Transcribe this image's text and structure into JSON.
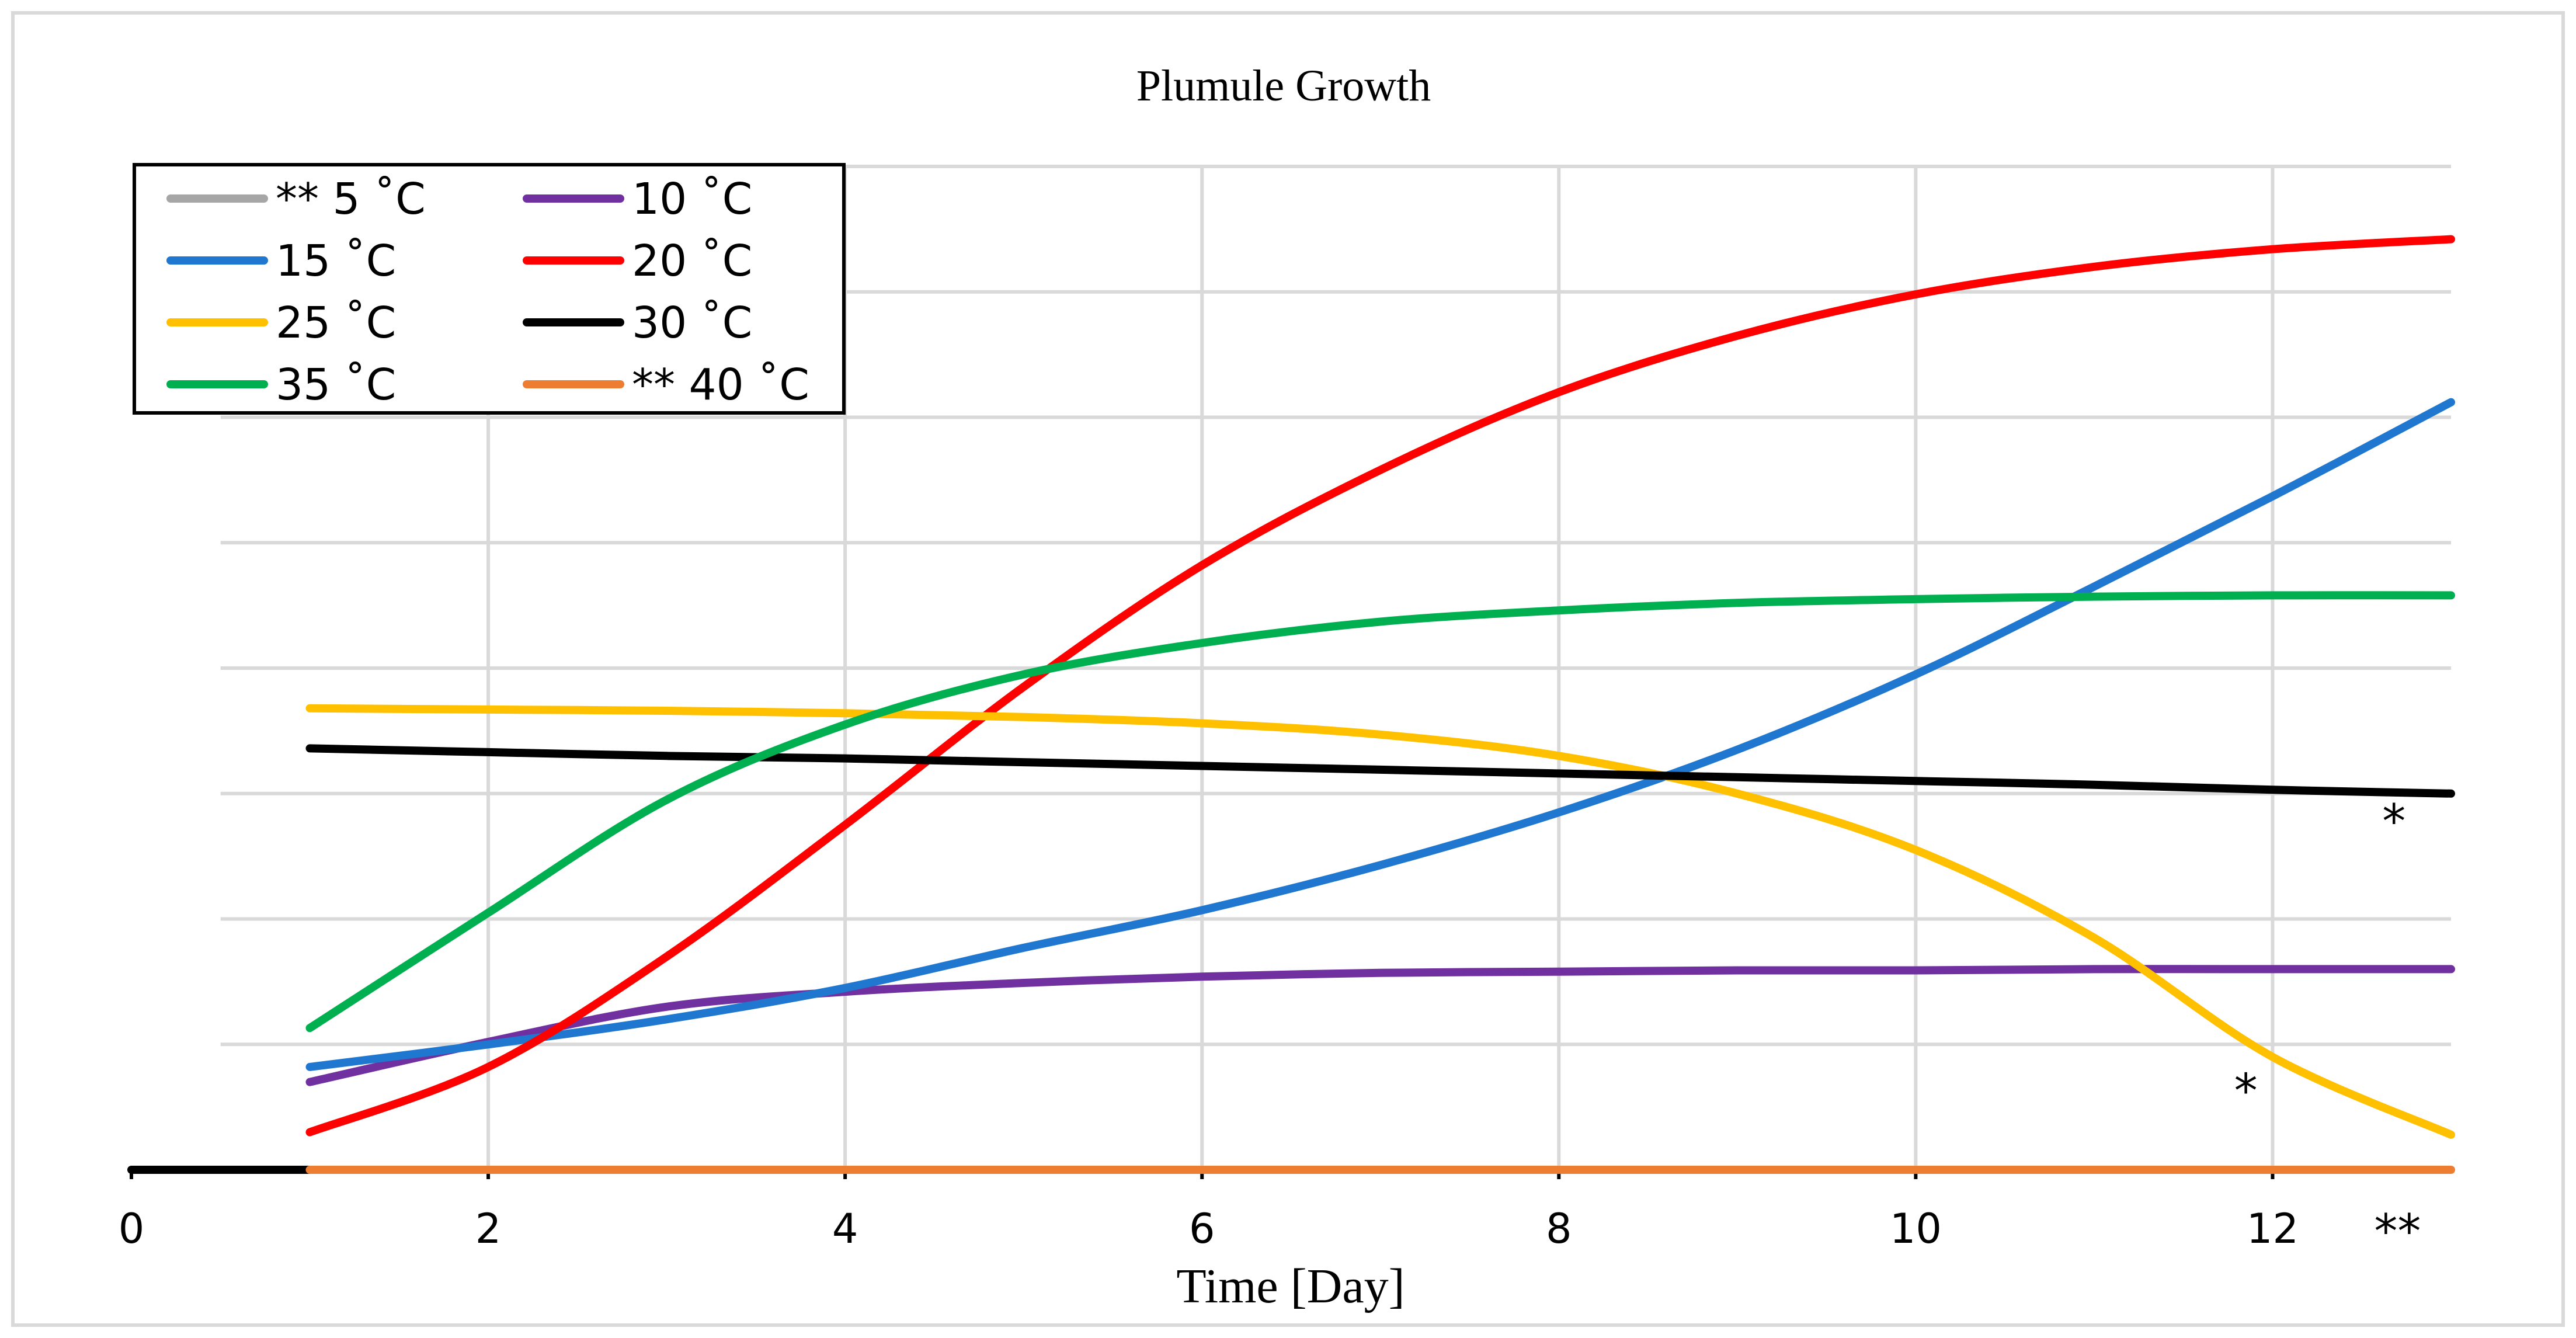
{
  "chart_data": {
    "type": "line",
    "title": "Plumule Growth",
    "xlabel": "Time [Day]",
    "ylabel": "",
    "xlim": [
      0,
      13
    ],
    "ylim": [
      0,
      8
    ],
    "x_ticks": [
      "0",
      "2",
      "4",
      "6",
      "8",
      "10",
      "12"
    ],
    "x_tick_values": [
      0,
      2,
      4,
      6,
      8,
      10,
      12
    ],
    "y_gridlines": [
      1,
      2,
      3,
      4,
      5,
      6,
      7,
      8
    ],
    "grid": true,
    "legend_position": "top-left",
    "series": [
      {
        "name": "** 5 ˚C",
        "color": "#a6a6a6",
        "x": [
          0,
          1
        ],
        "y": [
          0,
          0
        ]
      },
      {
        "name": "10 ˚C",
        "color": "#7030a0",
        "x": [
          1,
          2,
          3,
          4,
          5,
          6,
          7,
          8,
          9,
          10,
          11,
          12,
          13
        ],
        "y": [
          0.7,
          1.02,
          1.3,
          1.42,
          1.49,
          1.54,
          1.57,
          1.58,
          1.59,
          1.59,
          1.6,
          1.6,
          1.6
        ]
      },
      {
        "name": "15 ˚C",
        "color": "#1f77d0",
        "x": [
          1,
          2,
          3,
          4,
          5,
          6,
          7,
          8,
          9,
          10,
          11,
          12,
          13
        ],
        "y": [
          0.82,
          1.0,
          1.2,
          1.45,
          1.77,
          2.07,
          2.43,
          2.85,
          3.35,
          3.95,
          4.65,
          5.37,
          6.12
        ]
      },
      {
        "name": "20 ˚C",
        "color": "#ff0000",
        "x": [
          1,
          2,
          3,
          4,
          5,
          6,
          7,
          8,
          9,
          10,
          11,
          12,
          13
        ],
        "y": [
          0.3,
          0.82,
          1.7,
          2.75,
          3.85,
          4.82,
          5.58,
          6.2,
          6.65,
          6.98,
          7.2,
          7.34,
          7.42
        ]
      },
      {
        "name": "25 ˚C",
        "color": "#ffc000",
        "x": [
          1,
          2,
          3,
          4,
          5,
          6,
          7,
          8,
          9,
          10,
          11,
          12,
          13
        ],
        "y": [
          3.68,
          3.67,
          3.66,
          3.64,
          3.61,
          3.56,
          3.47,
          3.3,
          3.0,
          2.55,
          1.85,
          0.9,
          0.28
        ]
      },
      {
        "name": "30 ˚C",
        "color": "#000000",
        "x": [
          1,
          2,
          3,
          4,
          5,
          6,
          7,
          8,
          9,
          10,
          11,
          12,
          13
        ],
        "y": [
          3.36,
          3.33,
          3.3,
          3.28,
          3.25,
          3.22,
          3.19,
          3.16,
          3.13,
          3.1,
          3.07,
          3.03,
          3.0
        ]
      },
      {
        "name": "35 ˚C",
        "color": "#00b050",
        "x": [
          1,
          2,
          3,
          4,
          5,
          6,
          7,
          8,
          9,
          10,
          11,
          12,
          13
        ],
        "y": [
          1.13,
          2.05,
          2.95,
          3.55,
          3.95,
          4.2,
          4.37,
          4.46,
          4.52,
          4.55,
          4.57,
          4.58,
          4.58
        ]
      },
      {
        "name": "** 40 ˚C",
        "color": "#ed7d31",
        "x": [
          1,
          13
        ],
        "y": [
          0,
          0
        ]
      }
    ],
    "annotations": [
      {
        "text": "*",
        "x": 12.68,
        "y": 2.65
      },
      {
        "text": "*",
        "x": 11.85,
        "y": 0.5
      },
      {
        "text": "**",
        "x": 12.7,
        "y": -0.62
      }
    ]
  }
}
